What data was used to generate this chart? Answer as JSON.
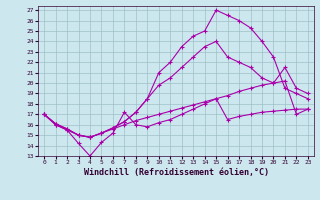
{
  "xlabel": "Windchill (Refroidissement éolien,°C)",
  "bg_color": "#cce8ee",
  "grid_color": "#9fbfc8",
  "line_color": "#aa00aa",
  "xlim": [
    -0.5,
    23.5
  ],
  "ylim": [
    13,
    27.4
  ],
  "xticks": [
    0,
    1,
    2,
    3,
    4,
    5,
    6,
    7,
    8,
    9,
    10,
    11,
    12,
    13,
    14,
    15,
    16,
    17,
    18,
    19,
    20,
    21,
    22,
    23
  ],
  "yticks": [
    13,
    14,
    15,
    16,
    17,
    18,
    19,
    20,
    21,
    22,
    23,
    24,
    25,
    26,
    27
  ],
  "s1": [
    17,
    16,
    15.5,
    14.2,
    13,
    14.3,
    15.2,
    17.2,
    16.0,
    15.8,
    16.2,
    16.5,
    17.0,
    17.5,
    18.0,
    18.5,
    16.5,
    16.8,
    17.0,
    17.2,
    17.3,
    17.4,
    17.5,
    17.5
  ],
  "s2": [
    17,
    16.1,
    15.6,
    15.0,
    14.8,
    15.2,
    15.7,
    16.3,
    17.2,
    18.5,
    21.0,
    22.0,
    23.5,
    24.5,
    25.0,
    27.0,
    26.5,
    26.0,
    25.3,
    24.0,
    22.5,
    19.5,
    19.0,
    18.5
  ],
  "s3": [
    17,
    16.1,
    15.6,
    15.0,
    14.8,
    15.2,
    15.7,
    16.3,
    17.2,
    18.5,
    19.8,
    20.5,
    21.5,
    22.5,
    23.5,
    24.0,
    22.5,
    22.0,
    21.5,
    20.5,
    20.0,
    21.5,
    19.5,
    19.0
  ],
  "s4": [
    17,
    16.0,
    15.5,
    15.0,
    14.8,
    15.2,
    15.6,
    16.0,
    16.4,
    16.7,
    17.0,
    17.3,
    17.6,
    17.9,
    18.2,
    18.5,
    18.8,
    19.2,
    19.5,
    19.8,
    20.0,
    20.2,
    17.0,
    17.5
  ]
}
